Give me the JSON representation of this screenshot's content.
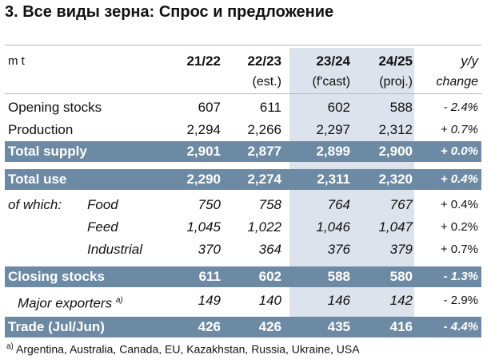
{
  "title": "3. Все виды зерна: Спрос и предложение",
  "header": {
    "unit": "m t",
    "col1_line1": "21/22",
    "col2_line1": "22/23",
    "col2_line2": "(est.)",
    "col3_line1": "23/24",
    "col3_line2": "(f'cast)",
    "col4_line1": "24/25",
    "col4_line2": "(proj.)",
    "col5_line1": "y/y",
    "col5_line2": "change"
  },
  "rows": {
    "opening": {
      "label": "Opening stocks",
      "v": [
        "607",
        "611",
        "602",
        "588"
      ],
      "change": "- 2.4%"
    },
    "production": {
      "label": "Production",
      "v": [
        "2,294",
        "2,266",
        "2,297",
        "2,312"
      ],
      "change": "+ 0.7%"
    },
    "total_supply": {
      "label": "Total supply",
      "v": [
        "2,901",
        "2,877",
        "2,899",
        "2,900"
      ],
      "change": "+ 0.0%"
    },
    "total_use": {
      "label": "Total use",
      "v": [
        "2,290",
        "2,274",
        "2,311",
        "2,320"
      ],
      "change": "+ 0.4%"
    },
    "food": {
      "prefix": "of which:",
      "label": "Food",
      "v": [
        "750",
        "758",
        "764",
        "767"
      ],
      "change": "+ 0.4%"
    },
    "feed": {
      "label": "Feed",
      "v": [
        "1,045",
        "1,022",
        "1,046",
        "1,047"
      ],
      "change": "+ 0.2%"
    },
    "industrial": {
      "label": "Industrial",
      "v": [
        "370",
        "364",
        "376",
        "379"
      ],
      "change": "+ 0.7%"
    },
    "closing": {
      "label": "Closing stocks",
      "v": [
        "611",
        "602",
        "588",
        "580"
      ],
      "change": "- 1.3%"
    },
    "exporters": {
      "label": "Major exporters",
      "sup": "a)",
      "v": [
        "149",
        "140",
        "146",
        "142"
      ],
      "change": "- 2.9%"
    },
    "trade": {
      "label": "Trade (Jul/Jun)",
      "v": [
        "426",
        "426",
        "435",
        "416"
      ],
      "change": "- 4.4%"
    }
  },
  "footnote": {
    "mark": "a)",
    "text": " Argentina, Australia, Canada, EU, Kazakhstan, Russia, Ukraine, USA"
  },
  "colors": {
    "bar": "#6d8aa5",
    "shade": "#dde3ec"
  }
}
